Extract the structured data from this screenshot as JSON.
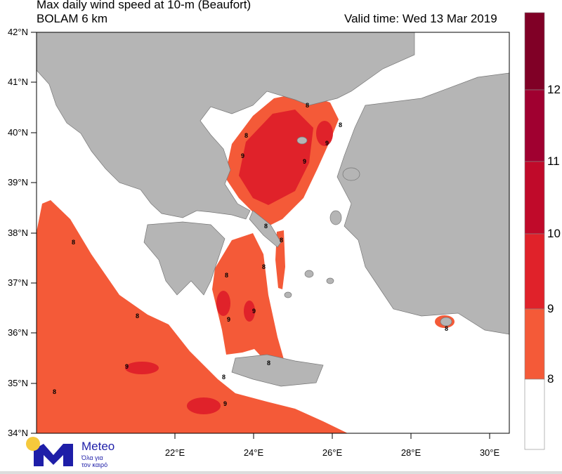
{
  "header": {
    "title": "Max daily wind speed at 10-m (Beaufort)",
    "subtitle": "BOLAM 6 km",
    "valid_time": "Valid time: Wed 13 Mar 2019"
  },
  "map": {
    "lat_labels": [
      "42°N",
      "41°N",
      "40°N",
      "39°N",
      "38°N",
      "37°N",
      "36°N",
      "35°N",
      "34°N"
    ],
    "lon_labels": [
      "22°E",
      "24°E",
      "26°E",
      "28°E",
      "30°E"
    ],
    "extent": {
      "lat": [
        34,
        42
      ],
      "lon": [
        18.5,
        30.5
      ]
    },
    "contour_labels": [
      "8",
      "8",
      "8",
      "8",
      "8",
      "8",
      "8",
      "8",
      "8",
      "8",
      "8",
      "8",
      "8",
      "9",
      "9",
      "9",
      "9",
      "9",
      "9",
      "9"
    ],
    "colors": {
      "land": "#b5b5b5",
      "sea": "#ffffff",
      "b8_9": "#f45a38",
      "b9_10": "#e0222a",
      "b10_11": "#c00a2a",
      "b11_12": "#a00030",
      "b12": "#800026"
    }
  },
  "colorbar": {
    "labels": [
      "12",
      "11",
      "10",
      "9",
      "8"
    ]
  },
  "logo": {
    "name": "Meteo",
    "tagline1": "Όλα για",
    "tagline2": "τον καιρό",
    "colors": {
      "blue": "#1e1ea8",
      "sun": "#f5c93c"
    }
  }
}
